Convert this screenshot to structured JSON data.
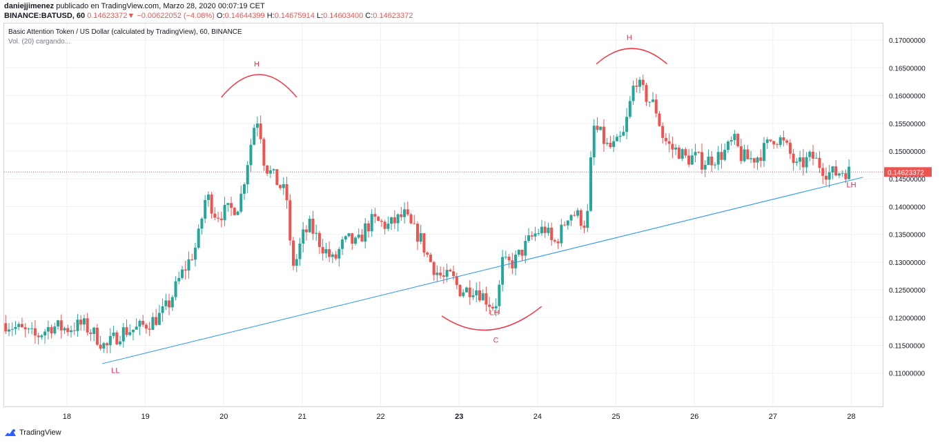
{
  "header": {
    "author": "daniejjimenez",
    "published": "publicado en TradingView.com, Marzo 28, 2020 00:07:19 CET",
    "symbol": "BINANCE:BATUSD, 60",
    "last": "0.14623372",
    "arrow": "▼",
    "change": "−0.00622052 (−4.08%)",
    "o_label": "O:",
    "o_value": "0.14644399",
    "h_label": "H:",
    "h_value": "0.14675914",
    "l_label": "L:",
    "l_value": "0.14603400",
    "c_label": "C:",
    "c_value": "0.14623372"
  },
  "legend": {
    "title": "Basic Attention Token / US Dollar (calculated by TradingView), 60, BINANCE",
    "volume": "Vol. (20) cargando..."
  },
  "footer": {
    "brand": "TradingView"
  },
  "colors": {
    "up": "#26a69a",
    "down": "#ef5350",
    "trendline": "#2196f3",
    "annotation": "#f23645",
    "label_pink": "#e91e63",
    "price_line": "#ef5350",
    "grid": "#eef0f4",
    "axis_text": "#131722"
  },
  "chart_data": {
    "type": "candlestick",
    "x_ticks": [
      "18",
      "19",
      "20",
      "21",
      "22",
      "23",
      "24",
      "25",
      "26",
      "27",
      "28"
    ],
    "x_tick_values": [
      18,
      19,
      20,
      21,
      22,
      23,
      24,
      25,
      26,
      27,
      28
    ],
    "xlim": [
      17.2,
      28.4
    ],
    "ylim": [
      0.104,
      0.173
    ],
    "y_ticks": [
      "0.11000000",
      "0.11500000",
      "0.12000000",
      "0.12500000",
      "0.13000000",
      "0.13500000",
      "0.14000000",
      "0.14500000",
      "0.15000000",
      "0.15500000",
      "0.16000000",
      "0.16500000",
      "0.17000000"
    ],
    "y_tick_values": [
      0.11,
      0.115,
      0.12,
      0.125,
      0.13,
      0.135,
      0.14,
      0.145,
      0.15,
      0.155,
      0.16,
      0.165,
      0.17
    ],
    "last_price_label": "0.14623372",
    "last_price": 0.14623372,
    "grid": true,
    "close_path": [
      [
        17.22,
        0.119
      ],
      [
        17.45,
        0.1175
      ],
      [
        17.6,
        0.1165
      ],
      [
        17.8,
        0.1185
      ],
      [
        18.0,
        0.118
      ],
      [
        18.2,
        0.1188
      ],
      [
        18.35,
        0.117
      ],
      [
        18.5,
        0.1145
      ],
      [
        18.55,
        0.1155
      ],
      [
        18.7,
        0.1175
      ],
      [
        18.9,
        0.118
      ],
      [
        19.1,
        0.1195
      ],
      [
        19.2,
        0.1205
      ],
      [
        19.3,
        0.1225
      ],
      [
        19.45,
        0.1275
      ],
      [
        19.55,
        0.13
      ],
      [
        19.65,
        0.133
      ],
      [
        19.7,
        0.136
      ],
      [
        19.75,
        0.141
      ],
      [
        19.8,
        0.1415
      ],
      [
        19.9,
        0.1385
      ],
      [
        20.0,
        0.139
      ],
      [
        20.1,
        0.1395
      ],
      [
        20.2,
        0.1405
      ],
      [
        20.3,
        0.148
      ],
      [
        20.4,
        0.1555
      ],
      [
        20.45,
        0.156
      ],
      [
        20.5,
        0.149
      ],
      [
        20.55,
        0.147
      ],
      [
        20.6,
        0.146
      ],
      [
        20.7,
        0.144
      ],
      [
        20.8,
        0.142
      ],
      [
        20.85,
        0.132
      ],
      [
        20.9,
        0.129
      ],
      [
        21.0,
        0.1345
      ],
      [
        21.1,
        0.1365
      ],
      [
        21.2,
        0.134
      ],
      [
        21.3,
        0.132
      ],
      [
        21.4,
        0.13
      ],
      [
        21.5,
        0.133
      ],
      [
        21.6,
        0.134
      ],
      [
        21.7,
        0.133
      ],
      [
        21.8,
        0.136
      ],
      [
        21.9,
        0.1375
      ],
      [
        22.0,
        0.137
      ],
      [
        22.1,
        0.1365
      ],
      [
        22.2,
        0.1375
      ],
      [
        22.3,
        0.1385
      ],
      [
        22.4,
        0.136
      ],
      [
        22.5,
        0.1345
      ],
      [
        22.6,
        0.131
      ],
      [
        22.7,
        0.1285
      ],
      [
        22.8,
        0.127
      ],
      [
        22.9,
        0.1275
      ],
      [
        23.0,
        0.125
      ],
      [
        23.1,
        0.125
      ],
      [
        23.2,
        0.1255
      ],
      [
        23.3,
        0.124
      ],
      [
        23.4,
        0.1225
      ],
      [
        23.45,
        0.122
      ],
      [
        23.5,
        0.124
      ],
      [
        23.55,
        0.13
      ],
      [
        23.6,
        0.1295
      ],
      [
        23.7,
        0.13
      ],
      [
        23.8,
        0.132
      ],
      [
        23.9,
        0.134
      ],
      [
        24.0,
        0.1355
      ],
      [
        24.1,
        0.136
      ],
      [
        24.2,
        0.133
      ],
      [
        24.3,
        0.1355
      ],
      [
        24.4,
        0.139
      ],
      [
        24.5,
        0.1385
      ],
      [
        24.6,
        0.137
      ],
      [
        24.65,
        0.139
      ],
      [
        24.7,
        0.1545
      ],
      [
        24.8,
        0.153
      ],
      [
        24.9,
        0.1505
      ],
      [
        25.0,
        0.151
      ],
      [
        25.1,
        0.153
      ],
      [
        25.2,
        0.16
      ],
      [
        25.25,
        0.1635
      ],
      [
        25.3,
        0.1615
      ],
      [
        25.4,
        0.1595
      ],
      [
        25.5,
        0.158
      ],
      [
        25.6,
        0.1525
      ],
      [
        25.7,
        0.1505
      ],
      [
        25.8,
        0.15
      ],
      [
        25.9,
        0.1485
      ],
      [
        26.0,
        0.149
      ],
      [
        26.1,
        0.148
      ],
      [
        26.2,
        0.1485
      ],
      [
        26.3,
        0.149
      ],
      [
        26.4,
        0.15
      ],
      [
        26.5,
        0.152
      ],
      [
        26.6,
        0.149
      ],
      [
        26.7,
        0.1485
      ],
      [
        26.8,
        0.149
      ],
      [
        26.9,
        0.1505
      ],
      [
        27.0,
        0.1525
      ],
      [
        27.1,
        0.152
      ],
      [
        27.2,
        0.15
      ],
      [
        27.3,
        0.147
      ],
      [
        27.4,
        0.148
      ],
      [
        27.5,
        0.149
      ],
      [
        27.6,
        0.1475
      ],
      [
        27.7,
        0.146
      ],
      [
        27.8,
        0.146
      ],
      [
        27.9,
        0.1465
      ],
      [
        28.0,
        0.1462
      ]
    ],
    "trendline": [
      [
        18.45,
        0.1117
      ],
      [
        28.15,
        0.1453
      ]
    ],
    "arcs": [
      {
        "from": [
          19.97,
          0.1597
        ],
        "top": [
          20.45,
          0.1638
        ],
        "to": [
          20.93,
          0.1597
        ]
      },
      {
        "from": [
          24.75,
          0.1657
        ],
        "top": [
          25.2,
          0.1685
        ],
        "to": [
          25.65,
          0.1657
        ]
      },
      {
        "from": [
          22.78,
          0.1203
        ],
        "bottom": [
          23.4,
          0.1178
        ],
        "to": [
          24.05,
          0.122
        ]
      }
    ],
    "annotations": [
      {
        "text": "H",
        "x": 20.42,
        "y": 0.1652,
        "color": "annotation"
      },
      {
        "text": "H",
        "x": 25.17,
        "y": 0.17,
        "color": "annotation"
      },
      {
        "text": "LH",
        "x": 23.45,
        "y": 0.1205,
        "color": "annotation"
      },
      {
        "text": "C",
        "x": 23.47,
        "y": 0.1155,
        "color": "annotation"
      },
      {
        "text": "LL",
        "x": 18.62,
        "y": 0.11,
        "color": "label_pink"
      },
      {
        "text": "LH",
        "x": 28.0,
        "y": 0.1435,
        "color": "label_pink"
      }
    ]
  }
}
